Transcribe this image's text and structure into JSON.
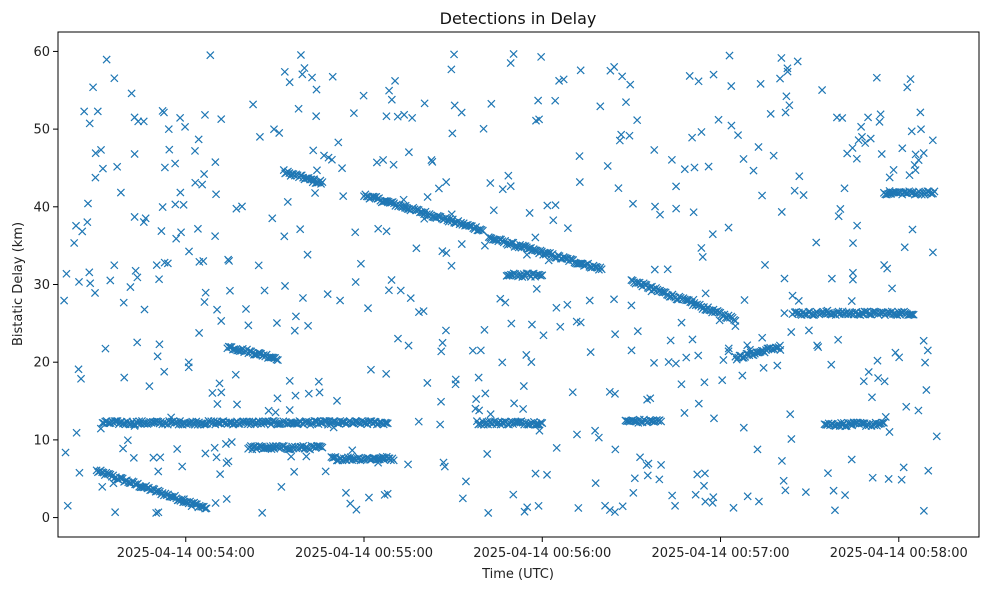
{
  "chart_data": {
    "type": "scatter",
    "title": "Detections in Delay",
    "xlabel": "Time (UTC)",
    "ylabel": "Bistatic Delay (km)",
    "marker": "x",
    "color": "#1f77b4",
    "grid": false,
    "xlim": [
      "2025-04-14 00:53:17",
      "2025-04-14 00:58:27"
    ],
    "ylim": [
      -2.5,
      62.5
    ],
    "x_ticks": [
      "2025-04-14 00:54:00",
      "2025-04-14 00:55:00",
      "2025-04-14 00:56:00",
      "2025-04-14 00:57:00",
      "2025-04-14 00:58:00"
    ],
    "y_ticks": [
      0,
      10,
      20,
      30,
      40,
      50,
      60
    ],
    "clusters": [
      {
        "description": "descending track",
        "x_start": "2025-04-14 00:53:30",
        "x_end": "2025-04-14 00:54:07",
        "y_start": 6.0,
        "y_end": 1.2
      },
      {
        "description": "descending track",
        "x_start": "2025-04-14 00:54:33",
        "x_end": "2025-04-14 00:54:46",
        "y_start": 44.5,
        "y_end": 43.0
      },
      {
        "description": "descending track",
        "x_start": "2025-04-14 00:55:00",
        "x_end": "2025-04-14 00:55:40",
        "y_start": 41.5,
        "y_end": 37.0
      },
      {
        "description": "descending track",
        "x_start": "2025-04-14 00:55:42",
        "x_end": "2025-04-14 00:56:20",
        "y_start": 36.0,
        "y_end": 32.0
      },
      {
        "description": "descending track",
        "x_start": "2025-04-14 00:56:30",
        "x_end": "2025-04-14 00:57:05",
        "y_start": 30.5,
        "y_end": 25.5
      },
      {
        "description": "descending track",
        "x_start": "2025-04-14 00:54:14",
        "x_end": "2025-04-14 00:54:31",
        "y_start": 22.0,
        "y_end": 20.5
      },
      {
        "description": "rising track",
        "x_start": "2025-04-14 00:57:05",
        "x_end": "2025-04-14 00:57:20",
        "y_start": 20.5,
        "y_end": 22.0
      },
      {
        "description": "flat band",
        "x_start": "2025-04-14 00:53:32",
        "x_end": "2025-04-14 00:55:08",
        "y_start": 12.2,
        "y_end": 12.2
      },
      {
        "description": "flat band",
        "x_start": "2025-04-14 00:54:21",
        "x_end": "2025-04-14 00:54:46",
        "y_start": 9.0,
        "y_end": 9.0
      },
      {
        "description": "flat band",
        "x_start": "2025-04-14 00:54:49",
        "x_end": "2025-04-14 00:55:10",
        "y_start": 7.6,
        "y_end": 7.6
      },
      {
        "description": "flat band",
        "x_start": "2025-04-14 00:55:38",
        "x_end": "2025-04-14 00:56:00",
        "y_start": 12.2,
        "y_end": 12.2
      },
      {
        "description": "flat band",
        "x_start": "2025-04-14 00:57:25",
        "x_end": "2025-04-14 00:58:05",
        "y_start": 26.3,
        "y_end": 26.3
      },
      {
        "description": "flat band",
        "x_start": "2025-04-14 00:57:35",
        "x_end": "2025-04-14 00:57:55",
        "y_start": 12.0,
        "y_end": 12.0
      },
      {
        "description": "flat band",
        "x_start": "2025-04-14 00:55:48",
        "x_end": "2025-04-14 00:56:00",
        "y_start": 31.2,
        "y_end": 31.2
      },
      {
        "description": "flat band",
        "x_start": "2025-04-14 00:57:55",
        "x_end": "2025-04-14 00:58:12",
        "y_start": 41.8,
        "y_end": 41.8
      },
      {
        "description": "flat band",
        "x_start": "2025-04-14 00:56:28",
        "x_end": "2025-04-14 00:56:40",
        "y_start": 12.4,
        "y_end": 12.4
      }
    ],
    "scatter_noise": {
      "approx_points": 560,
      "x_range": [
        "2025-04-14 00:53:19",
        "2025-04-14 00:58:13"
      ],
      "y_range": [
        0.5,
        59.8
      ]
    }
  }
}
